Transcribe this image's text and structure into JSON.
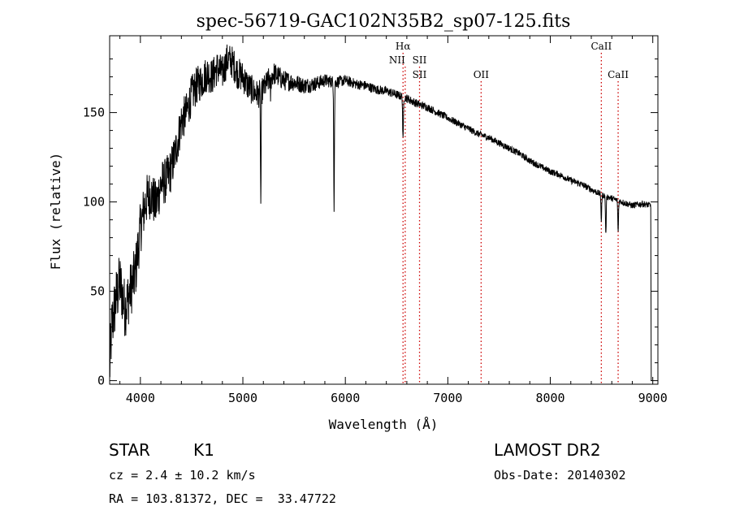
{
  "chart_data": {
    "type": "line",
    "title": "spec-56719-GAC102N35B2_sp07-125.fits",
    "xlabel": "Wavelength (Å)",
    "ylabel": "Flux (relative)",
    "xlim": [
      3700,
      9050
    ],
    "ylim": [
      -2,
      193
    ],
    "xticks": [
      4000,
      5000,
      6000,
      7000,
      8000,
      9000
    ],
    "yticks": [
      0,
      50,
      100,
      150
    ],
    "spectrum_anchor_points": {
      "x": [
        3700,
        3720,
        3760,
        3800,
        3850,
        3900,
        3950,
        4000,
        4050,
        4100,
        4150,
        4200,
        4250,
        4300,
        4350,
        4400,
        4450,
        4500,
        4550,
        4600,
        4650,
        4700,
        4750,
        4800,
        4850,
        4900,
        4950,
        5000,
        5050,
        5100,
        5150,
        5200,
        5250,
        5300,
        5350,
        5400,
        5500,
        5600,
        5700,
        5800,
        5900,
        6000,
        6100,
        6200,
        6300,
        6400,
        6500,
        6600,
        6700,
        6800,
        6900,
        7000,
        7100,
        7200,
        7300,
        7400,
        7500,
        7600,
        7700,
        7800,
        7900,
        8000,
        8100,
        8200,
        8300,
        8400,
        8500,
        8600,
        8700,
        8800,
        8900,
        8980
      ],
      "y": [
        5,
        30,
        45,
        55,
        40,
        50,
        60,
        85,
        100,
        105,
        98,
        110,
        112,
        118,
        130,
        145,
        150,
        160,
        165,
        168,
        172,
        170,
        175,
        172,
        180,
        178,
        172,
        170,
        165,
        162,
        160,
        163,
        168,
        172,
        170,
        168,
        167,
        165,
        166,
        168,
        167,
        168,
        166,
        165,
        163,
        162,
        160,
        158,
        155,
        153,
        150,
        147,
        144,
        141,
        138,
        136,
        133,
        130,
        127,
        123,
        120,
        117,
        115,
        112,
        110,
        107,
        104,
        102,
        100,
        98,
        99,
        98
      ]
    },
    "spectrum_noise_amplitude": {
      "x": [
        3700,
        4000,
        4500,
        5000,
        5500,
        6000,
        6500,
        7000,
        8000,
        9000
      ],
      "y": [
        18,
        15,
        11,
        9,
        5,
        3,
        2.5,
        2,
        1.8,
        1.8
      ]
    },
    "absorption_features": [
      {
        "x": 5175,
        "depth": 62
      },
      {
        "x": 5270,
        "depth": 10
      },
      {
        "x": 5890,
        "depth": 70
      },
      {
        "x": 6563,
        "depth": 25
      },
      {
        "x": 8498,
        "depth": 15
      },
      {
        "x": 8542,
        "depth": 22
      },
      {
        "x": 8662,
        "depth": 18
      }
    ],
    "spectral_lines": [
      {
        "label": "Hα",
        "x": 6563,
        "row": 0
      },
      {
        "label": "NII",
        "x": 6584,
        "row": 1,
        "anchor": "end"
      },
      {
        "label": "SII",
        "x": 6724,
        "row": 1,
        "anchor": "middle"
      },
      {
        "label": "SII",
        "x": 6724,
        "row": 2,
        "anchor": "middle",
        "line": false
      },
      {
        "label": "OII",
        "x": 7325,
        "row": 2
      },
      {
        "label": "CaII",
        "x": 8498,
        "row": 0
      },
      {
        "label": "CaII",
        "x": 8662,
        "row": 2
      }
    ],
    "line_color": "#cc0000",
    "spectrum_color": "#000000"
  },
  "info": {
    "object_type": "STAR",
    "subclass": "K1",
    "survey": "LAMOST DR2",
    "cz": "cz = 2.4 ± 10.2 km/s",
    "obs_date": "Obs-Date: 20140302",
    "coords": "RA = 103.81372, DEC =  33.47722"
  }
}
